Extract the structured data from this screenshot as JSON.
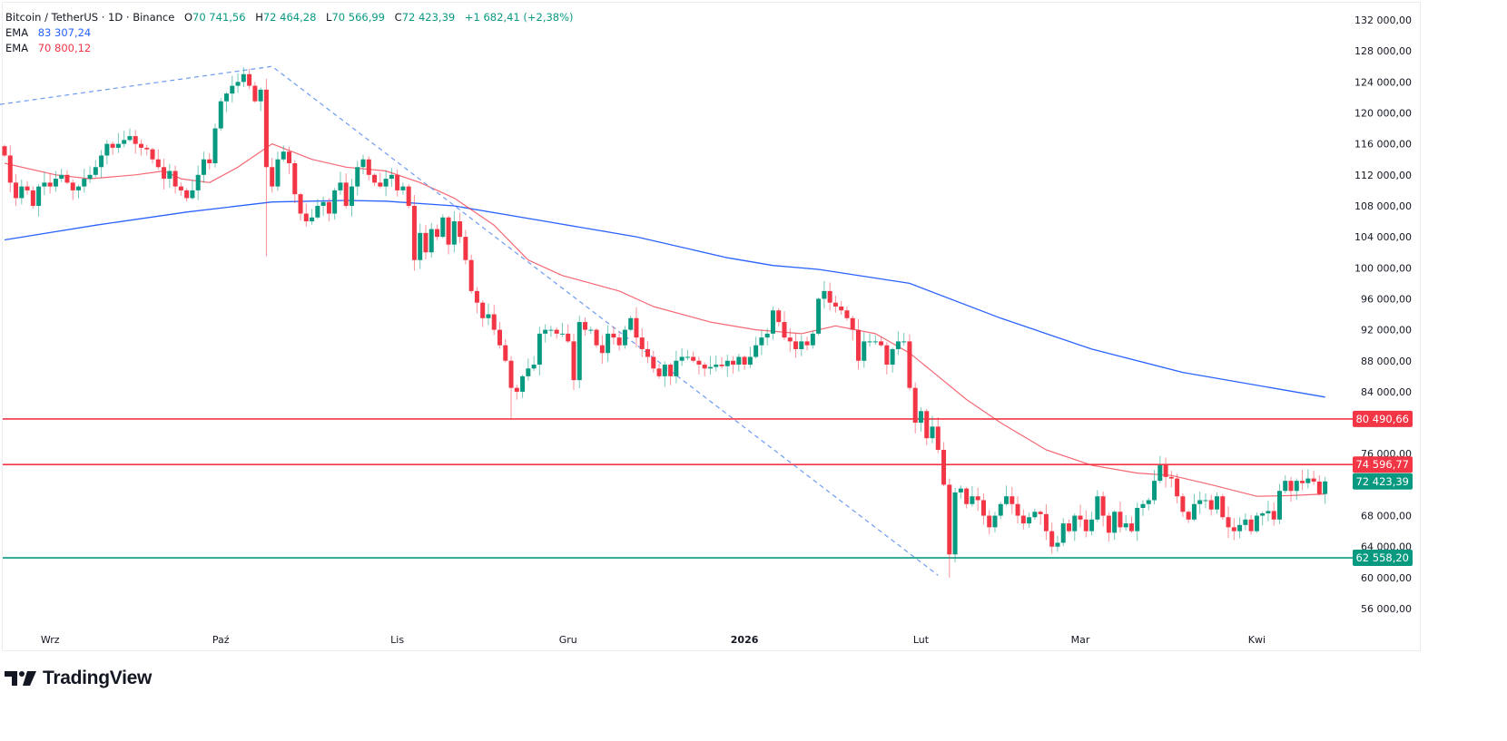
{
  "header": {
    "symbol": "Bitcoin / TetherUS · 1D · Binance",
    "open_label": "O",
    "open": "70 741,56",
    "high_label": "H",
    "high": "72 464,28",
    "low_label": "L",
    "low": "70 566,99",
    "close_label": "C",
    "close": "72 423,39",
    "change": "+1 682,41 (+2,38%)"
  },
  "indicators": [
    {
      "label": "EMA",
      "value": "83 307,24",
      "color": "#2962ff"
    },
    {
      "label": "EMA",
      "value": "70 800,12",
      "color": "#f23645"
    }
  ],
  "brand": {
    "name": "TradingView"
  },
  "colors": {
    "up": "#089981",
    "down": "#f23645",
    "ema_slow": "#2962ff",
    "ema_fast": "#f23645",
    "trendline": "#6e9bf0",
    "support": "#089981",
    "resistance": "#f23645"
  },
  "chart_data": {
    "type": "candlestick",
    "interval": "1D",
    "ylim": [
      54000,
      133000
    ],
    "y_ticks": [
      "132 000,00",
      "128 000,00",
      "124 000,00",
      "120 000,00",
      "116 000,00",
      "112 000,00",
      "108 000,00",
      "104 000,00",
      "100 000,00",
      "96 000,00",
      "92 000,00",
      "88 000,00",
      "84 000,00",
      "76 000,00",
      "68 000,00",
      "64 000,00",
      "60 000,00",
      "56 000,00"
    ],
    "y_tick_values": [
      132000,
      128000,
      124000,
      120000,
      116000,
      112000,
      108000,
      104000,
      100000,
      96000,
      92000,
      88000,
      84000,
      76000,
      68000,
      64000,
      60000,
      56000
    ],
    "x_ticks": [
      {
        "label": "Wrz",
        "candle": 8,
        "bold": false
      },
      {
        "label": "Paź",
        "candle": 38,
        "bold": false
      },
      {
        "label": "Lis",
        "candle": 69,
        "bold": false
      },
      {
        "label": "Gru",
        "candle": 99,
        "bold": false
      },
      {
        "label": "2026",
        "candle": 130,
        "bold": true
      },
      {
        "label": "Lut",
        "candle": 161,
        "bold": false
      },
      {
        "label": "Mar",
        "candle": 189,
        "bold": false
      },
      {
        "label": "Kwi",
        "candle": 220,
        "bold": false
      }
    ],
    "close": [
      114500,
      111000,
      109000,
      110500,
      110000,
      108000,
      110500,
      111000,
      110500,
      111500,
      112000,
      111000,
      110000,
      110500,
      111500,
      112000,
      113000,
      114500,
      116000,
      115500,
      116000,
      116500,
      117000,
      116000,
      115500,
      115300,
      114000,
      113000,
      111500,
      112500,
      110500,
      110000,
      109000,
      110000,
      112000,
      114000,
      113500,
      118000,
      121500,
      122500,
      123500,
      124000,
      125000,
      123500,
      121500,
      123000,
      113000,
      110500,
      114000,
      115000,
      113500,
      109500,
      107000,
      106000,
      106500,
      108000,
      108500,
      107000,
      110000,
      111000,
      108000,
      110500,
      113000,
      114000,
      112000,
      111000,
      110500,
      111500,
      112000,
      110000,
      110500,
      108000,
      101000,
      104500,
      102000,
      105000,
      104000,
      106500,
      103000,
      106000,
      104000,
      101000,
      97000,
      95500,
      93500,
      94000,
      92000,
      90000,
      88000,
      84500,
      84000,
      86000,
      87000,
      87500,
      91500,
      92000,
      92000,
      91500,
      91500,
      90500,
      85500,
      93000,
      92000,
      92000,
      90000,
      89000,
      91500,
      91000,
      90000,
      92000,
      93500,
      91000,
      89500,
      88500,
      87000,
      86000,
      87500,
      86000,
      88000,
      88500,
      88500,
      88000,
      87500,
      87000,
      87200,
      87500,
      87300,
      88000,
      87500,
      88500,
      87500,
      88500,
      90000,
      91000,
      91500,
      94500,
      93000,
      91000,
      90500,
      89500,
      90500,
      90000,
      91500,
      96000,
      97000,
      95500,
      95000,
      94500,
      93500,
      92000,
      88000,
      90500,
      90500,
      90500,
      90000,
      87500,
      89500,
      90500,
      90500,
      84500,
      80000,
      81500,
      78000,
      79500,
      76500,
      72000,
      63000,
      71000,
      71500,
      69500,
      70500,
      70000,
      68000,
      66500,
      68000,
      69500,
      70500,
      69500,
      68000,
      67000,
      67800,
      68500,
      68200,
      66000,
      64000,
      64500,
      67000,
      66000,
      68000,
      67500,
      66000,
      67500,
      70500,
      68000,
      65800,
      68500,
      66500,
      67000,
      66000,
      69000,
      69500,
      70000,
      72500,
      74500,
      73000,
      72800,
      70500,
      68500,
      67500,
      69500,
      70000,
      70000,
      68800,
      70500,
      67800,
      66500,
      66000,
      66800,
      67500,
      66000,
      68000,
      68300,
      68600,
      67500,
      71200,
      72500,
      71200,
      72500,
      72200,
      72800,
      72400,
      70800,
      72423.39
    ],
    "notable_lows": [
      {
        "candle": 46,
        "value": 101500
      },
      {
        "candle": 166,
        "value": 60000
      },
      {
        "candle": 89,
        "value": 80600
      }
    ],
    "ema_fast": [
      [
        0,
        113500
      ],
      [
        9,
        112000
      ],
      [
        15,
        111500
      ],
      [
        23,
        112000
      ],
      [
        28,
        112500
      ],
      [
        31,
        111500
      ],
      [
        36,
        111000
      ],
      [
        41,
        113000
      ],
      [
        47,
        116000
      ],
      [
        54,
        114000
      ],
      [
        60,
        113000
      ],
      [
        67,
        112500
      ],
      [
        73,
        111000
      ],
      [
        79,
        109000
      ],
      [
        86,
        105500
      ],
      [
        92,
        101000
      ],
      [
        98,
        99000
      ],
      [
        108,
        97000
      ],
      [
        114,
        95000
      ],
      [
        124,
        93000
      ],
      [
        132,
        92000
      ],
      [
        140,
        91500
      ],
      [
        146,
        92500
      ],
      [
        153,
        91500
      ],
      [
        159,
        89000
      ],
      [
        164,
        86000
      ],
      [
        169,
        83000
      ],
      [
        175,
        80000
      ],
      [
        183,
        76500
      ],
      [
        191,
        74500
      ],
      [
        199,
        73500
      ],
      [
        205,
        73200
      ],
      [
        212,
        72000
      ],
      [
        220,
        70500
      ],
      [
        226,
        70600
      ],
      [
        232,
        70800
      ]
    ],
    "ema_slow": [
      [
        0,
        103600
      ],
      [
        16,
        105500
      ],
      [
        32,
        107200
      ],
      [
        47,
        108500
      ],
      [
        60,
        108700
      ],
      [
        67,
        108600
      ],
      [
        79,
        108000
      ],
      [
        95,
        106000
      ],
      [
        111,
        104000
      ],
      [
        127,
        101300
      ],
      [
        135,
        100300
      ],
      [
        143,
        99800
      ],
      [
        159,
        98000
      ],
      [
        175,
        93500
      ],
      [
        191,
        89500
      ],
      [
        207,
        86500
      ],
      [
        232,
        83307
      ]
    ],
    "trendline": [
      [
        -0.8,
        121100
      ],
      [
        47,
        126000
      ],
      [
        164,
        60300
      ]
    ],
    "horizontal_levels": [
      {
        "value": 80490.66,
        "label": "80 490,66",
        "kind": "resistance"
      },
      {
        "value": 74596.77,
        "label": "74 596,77",
        "kind": "resistance"
      },
      {
        "value": 62558.2,
        "label": "62 558,20",
        "kind": "support"
      }
    ],
    "last_price": {
      "value": 72423.39,
      "label": "72 423,39"
    }
  }
}
